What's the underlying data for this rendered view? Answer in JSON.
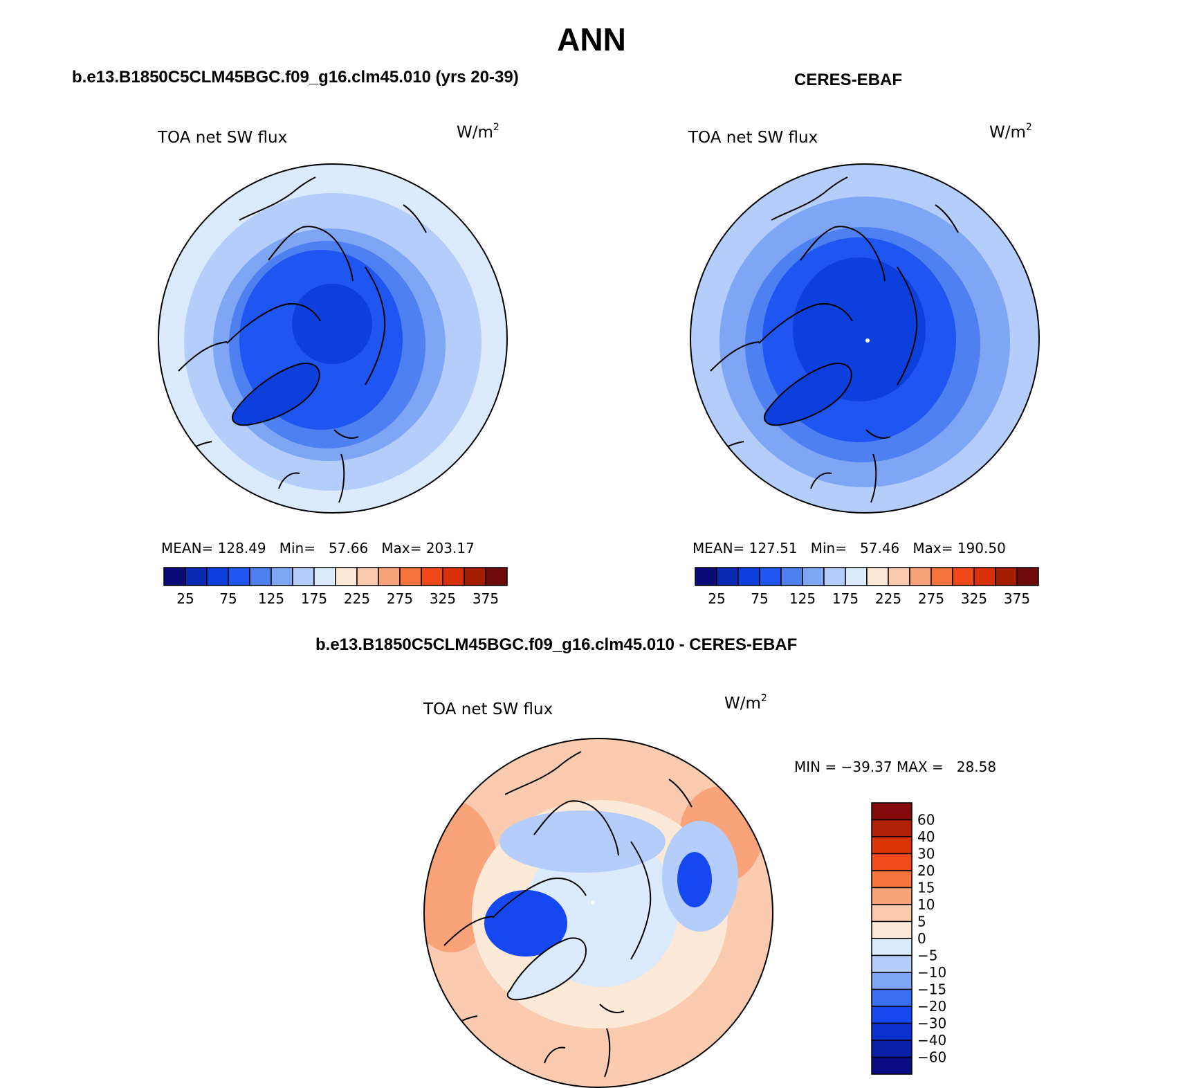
{
  "figure": {
    "season": "ANN",
    "model_title": "b.e13.B1850C5CLM45BGC.f09_g16.clm45.010 (yrs 20-39)",
    "obs_title": "CERES-EBAF",
    "diff_title": "b.e13.B1850C5CLM45BGC.f09_g16.clm45.010 - CERES-EBAF"
  },
  "panels": {
    "model": {
      "variable": "TOA net SW flux",
      "units": "W/m",
      "units_exp": "2",
      "stats": "MEAN= 128.49   Min=   57.66   Max= 203.17"
    },
    "obs": {
      "variable": "TOA net SW flux",
      "units": "W/m",
      "units_exp": "2",
      "stats": "MEAN= 127.51   Min=   57.46   Max= 190.50"
    },
    "diff": {
      "variable": "TOA net SW flux",
      "units": "W/m",
      "units_exp": "2",
      "stats": "MIN = −39.37 MAX =   28.58"
    }
  },
  "colorbars": {
    "abs": {
      "colors": [
        "#0a0a78",
        "#0a2ab4",
        "#0d3fdc",
        "#1f55f0",
        "#4f80f2",
        "#7fa6f5",
        "#b4cdfa",
        "#dceafd",
        "#fde9d7",
        "#fbcbb0",
        "#f9a37a",
        "#f7743f",
        "#f04a1a",
        "#d83008",
        "#a51e04",
        "#6e0a0a"
      ],
      "tick_labels": [
        "25",
        "75",
        "125",
        "175",
        "225",
        "275",
        "325",
        "375"
      ]
    },
    "diff": {
      "colors": [
        "#0a0a82",
        "#0a1fa8",
        "#0a30cf",
        "#1548f0",
        "#3a6ef4",
        "#7fa6f5",
        "#b4cdfa",
        "#dceafd",
        "#fde9d7",
        "#fbcbb0",
        "#f9a37a",
        "#f7743f",
        "#f24c1c",
        "#dc3408",
        "#b02006",
        "#820a0a"
      ],
      "tick_labels": [
        "60",
        "40",
        "30",
        "20",
        "15",
        "10",
        "5",
        "0",
        "−5",
        "−10",
        "−15",
        "−20",
        "−30",
        "−40",
        "−60"
      ]
    }
  },
  "map_palette": {
    "pale": "#dceafd",
    "light": "#b4cdfa",
    "mid": "#7fa6f5",
    "midblue": "#4f80f2",
    "blue": "#1f55f0",
    "deep": "#0d3fdc",
    "diff_pos_light": "#fde9d7",
    "diff_pos_mid": "#fbcbb0",
    "diff_pos_strong": "#f9a37a",
    "diff_neg_light": "#dceafd",
    "diff_neg_mid": "#b4cdfa",
    "diff_neg_strong": "#1548f0"
  }
}
